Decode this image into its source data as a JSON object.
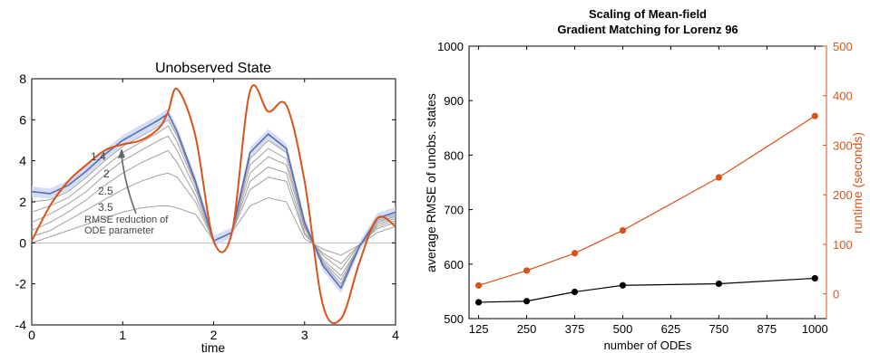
{
  "colors": {
    "orange": "#d95319",
    "black": "#000000",
    "blue": "#5b6bb8",
    "blue_band": "#c9d6f0",
    "gray": "#a0a0a0",
    "zero_line": "#bdbdbd"
  },
  "chart_data": [
    {
      "type": "line",
      "title": "Unobserved State",
      "xlabel": "time",
      "ylabel": "",
      "xlim": [
        0,
        4
      ],
      "ylim": [
        -4,
        8
      ],
      "xticks": [
        "0",
        "1",
        "2",
        "3",
        "4"
      ],
      "yticks": [
        "-4",
        "-2",
        "0",
        "2",
        "4",
        "6",
        "8"
      ],
      "annotations": {
        "levels": [
          "1.4",
          "2",
          "2.5",
          "3.5"
        ],
        "arrow_label_line1": "RMSE reduction of",
        "arrow_label_line2": "ODE parameter"
      },
      "x": [
        0,
        0.2,
        0.4,
        0.6,
        0.8,
        1.0,
        1.2,
        1.4,
        1.5,
        1.6,
        1.8,
        2.0,
        2.2,
        2.4,
        2.6,
        2.8,
        3.0,
        3.2,
        3.4,
        3.6,
        3.8,
        4.0
      ],
      "series": [
        {
          "role": "true",
          "values": [
            0.1,
            1.8,
            3.0,
            3.8,
            4.5,
            4.8,
            5.0,
            5.6,
            6.4,
            7.5,
            5.2,
            0.1,
            0.5,
            7.4,
            6.4,
            6.7,
            3.0,
            -3.0,
            -3.7,
            -1.0,
            1.2,
            0.8
          ]
        },
        {
          "role": "estimate",
          "values": [
            2.5,
            2.4,
            2.8,
            3.5,
            4.3,
            5.0,
            5.5,
            6.0,
            6.3,
            5.4,
            3.0,
            0.1,
            0.5,
            4.4,
            5.3,
            4.6,
            1.0,
            -1.1,
            -2.2,
            -0.2,
            1.2,
            1.5
          ]
        },
        {
          "role": "reduced",
          "values": [
            2.0,
            2.1,
            2.5,
            3.2,
            4.0,
            4.7,
            5.2,
            5.7,
            6.0,
            5.2,
            2.9,
            0.1,
            0.5,
            4.1,
            5.0,
            4.4,
            0.9,
            -1.0,
            -2.0,
            -0.2,
            1.1,
            1.4
          ]
        },
        {
          "role": "reduced",
          "values": [
            1.5,
            1.8,
            2.2,
            2.9,
            3.7,
            4.4,
            4.9,
            5.4,
            5.7,
            4.9,
            2.8,
            0.1,
            0.5,
            3.8,
            4.6,
            4.1,
            0.8,
            -0.9,
            -1.8,
            -0.2,
            1.0,
            1.3
          ]
        },
        {
          "role": "reduced",
          "values": [
            1.0,
            1.4,
            1.9,
            2.5,
            3.3,
            4.0,
            4.5,
            5.0,
            5.2,
            4.5,
            2.6,
            0.1,
            0.5,
            3.4,
            4.2,
            3.8,
            0.7,
            -0.8,
            -1.6,
            -0.2,
            0.9,
            1.2
          ]
        },
        {
          "role": "reduced",
          "values": [
            0.6,
            1.0,
            1.5,
            2.1,
            2.8,
            3.4,
            3.9,
            4.3,
            4.5,
            3.9,
            2.3,
            0.1,
            0.5,
            3.0,
            3.7,
            3.4,
            0.5,
            -0.6,
            -1.3,
            -0.1,
            0.8,
            1.1
          ]
        },
        {
          "role": "reduced",
          "values": [
            0.3,
            0.6,
            1.1,
            1.6,
            2.1,
            2.6,
            3.0,
            3.3,
            3.4,
            3.2,
            2.0,
            0.1,
            0.5,
            2.6,
            3.2,
            3.0,
            0.4,
            -0.5,
            -1.0,
            -0.1,
            0.7,
            1.0
          ]
        },
        {
          "role": "reduced",
          "values": [
            0.0,
            0.3,
            0.6,
            0.9,
            1.2,
            1.5,
            1.7,
            1.8,
            1.8,
            1.7,
            1.4,
            0.1,
            0.5,
            1.8,
            2.2,
            2.0,
            0.2,
            -0.3,
            -0.6,
            -0.1,
            0.5,
            0.8
          ]
        }
      ]
    },
    {
      "type": "line",
      "title_line1": "Scaling of Mean-field",
      "title_line2": "Gradient Matching for Lorenz 96",
      "xlabel": "number of ODEs",
      "ylabel_left": "average RMSE of unobs. states",
      "ylabel_right": "runtime (seconds)",
      "xlim": [
        100,
        1030
      ],
      "ylim_left": [
        500,
        1000
      ],
      "ylim_right": [
        -50,
        500
      ],
      "xticks": [
        125,
        250,
        375,
        500,
        625,
        750,
        875,
        1000
      ],
      "yticks_left": [
        500,
        600,
        700,
        800,
        900,
        1000
      ],
      "yticks_right": [
        0,
        100,
        200,
        300,
        400,
        500
      ],
      "series": [
        {
          "name": "",
          "axis": "left",
          "color": "#000000",
          "x": [
            125,
            250,
            375,
            500,
            750,
            1000
          ],
          "values": [
            530,
            532,
            549,
            561,
            564,
            574
          ]
        },
        {
          "name": "",
          "axis": "right",
          "color": "#d95319",
          "x": [
            125,
            250,
            375,
            500,
            750,
            1000
          ],
          "values": [
            17,
            47,
            82,
            128,
            235,
            359
          ]
        }
      ]
    }
  ]
}
